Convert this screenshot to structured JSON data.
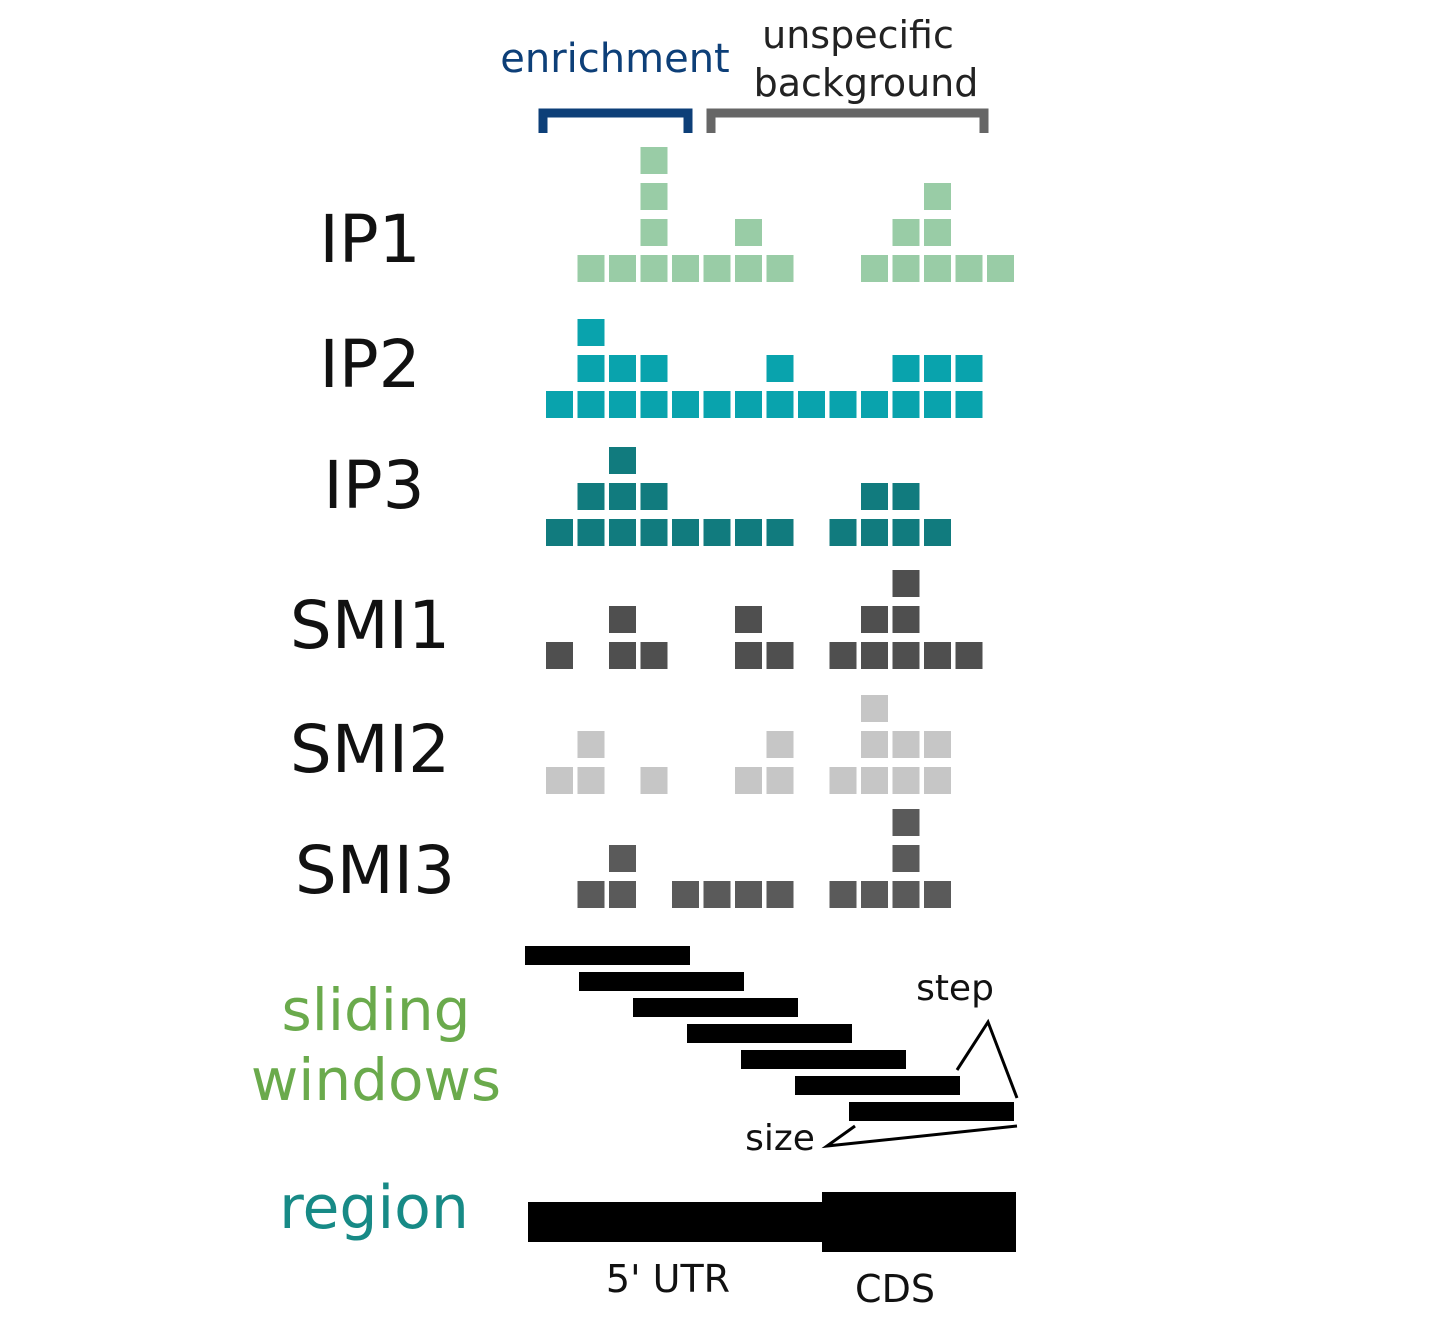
{
  "header": {
    "enrichment_label": "enrichment",
    "background_label_line1": "unspecific",
    "background_label_line2": "background",
    "enrichment_color": "#0d3f78",
    "background_color": "#666666"
  },
  "tracks": [
    {
      "label": "IP1",
      "color": "#99cca6",
      "cells": [
        [
          1,
          0
        ],
        [
          2,
          0
        ],
        [
          3,
          0
        ],
        [
          4,
          0
        ],
        [
          5,
          0
        ],
        [
          6,
          0
        ],
        [
          7,
          0
        ],
        [
          10,
          0
        ],
        [
          11,
          0
        ],
        [
          12,
          0
        ],
        [
          13,
          0
        ],
        [
          14,
          0
        ],
        [
          3,
          1
        ],
        [
          6,
          1
        ],
        [
          11,
          1
        ],
        [
          12,
          1
        ],
        [
          3,
          2
        ],
        [
          12,
          2
        ],
        [
          3,
          3
        ]
      ]
    },
    {
      "label": "IP2",
      "color": "#09a3ad",
      "cells": [
        [
          0,
          0
        ],
        [
          1,
          0
        ],
        [
          2,
          0
        ],
        [
          3,
          0
        ],
        [
          4,
          0
        ],
        [
          5,
          0
        ],
        [
          6,
          0
        ],
        [
          7,
          0
        ],
        [
          8,
          0
        ],
        [
          9,
          0
        ],
        [
          10,
          0
        ],
        [
          11,
          0
        ],
        [
          12,
          0
        ],
        [
          13,
          0
        ],
        [
          1,
          1
        ],
        [
          2,
          1
        ],
        [
          3,
          1
        ],
        [
          7,
          1
        ],
        [
          11,
          1
        ],
        [
          12,
          1
        ],
        [
          13,
          1
        ],
        [
          1,
          2
        ]
      ]
    },
    {
      "label": "IP3",
      "color": "#117b7e",
      "cells": [
        [
          0,
          0
        ],
        [
          1,
          0
        ],
        [
          2,
          0
        ],
        [
          3,
          0
        ],
        [
          4,
          0
        ],
        [
          5,
          0
        ],
        [
          6,
          0
        ],
        [
          7,
          0
        ],
        [
          9,
          0
        ],
        [
          10,
          0
        ],
        [
          11,
          0
        ],
        [
          12,
          0
        ],
        [
          1,
          1
        ],
        [
          2,
          1
        ],
        [
          3,
          1
        ],
        [
          10,
          1
        ],
        [
          11,
          1
        ],
        [
          2,
          2
        ]
      ]
    },
    {
      "label": "SMI1",
      "color": "#4f4f4f",
      "cells": [
        [
          0,
          0
        ],
        [
          2,
          0
        ],
        [
          3,
          0
        ],
        [
          6,
          0
        ],
        [
          7,
          0
        ],
        [
          9,
          0
        ],
        [
          10,
          0
        ],
        [
          11,
          0
        ],
        [
          12,
          0
        ],
        [
          13,
          0
        ],
        [
          2,
          1
        ],
        [
          6,
          1
        ],
        [
          10,
          1
        ],
        [
          11,
          1
        ],
        [
          11,
          2
        ]
      ]
    },
    {
      "label": "SMI2",
      "color": "#c6c6c6",
      "cells": [
        [
          0,
          0
        ],
        [
          1,
          0
        ],
        [
          3,
          0
        ],
        [
          6,
          0
        ],
        [
          7,
          0
        ],
        [
          9,
          0
        ],
        [
          10,
          0
        ],
        [
          11,
          0
        ],
        [
          12,
          0
        ],
        [
          1,
          1
        ],
        [
          7,
          1
        ],
        [
          10,
          1
        ],
        [
          11,
          1
        ],
        [
          12,
          1
        ],
        [
          10,
          2
        ]
      ]
    },
    {
      "label": "SMI3",
      "color": "#5a5a5a",
      "cells": [
        [
          1,
          0
        ],
        [
          2,
          0
        ],
        [
          4,
          0
        ],
        [
          5,
          0
        ],
        [
          6,
          0
        ],
        [
          7,
          0
        ],
        [
          9,
          0
        ],
        [
          10,
          0
        ],
        [
          11,
          0
        ],
        [
          12,
          0
        ],
        [
          2,
          1
        ],
        [
          11,
          1
        ],
        [
          11,
          2
        ]
      ]
    }
  ],
  "sliding_windows": {
    "label_line1": "sliding",
    "label_line2": "windows",
    "label_color": "#6aaa4c",
    "count": 7,
    "step_label": "step",
    "size_label": "size"
  },
  "region": {
    "label": "region",
    "label_color": "#178a86",
    "utr_label": "5' UTR",
    "cds_label": "CDS"
  }
}
